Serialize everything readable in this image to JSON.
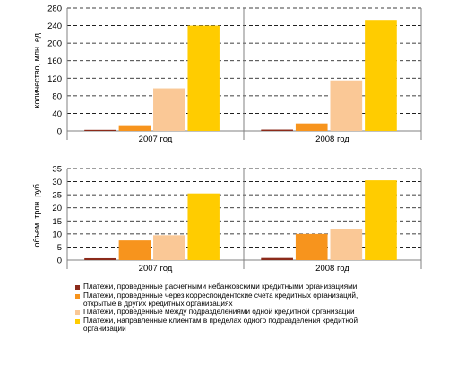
{
  "colors": {
    "series_colors": [
      "#8B2A1A",
      "#F7941D",
      "#FAC896",
      "#FFCC00"
    ],
    "grid": "#000000",
    "axis": "#808080"
  },
  "chart_data": [
    {
      "type": "bar",
      "ylabel": "количество, млн. ед.",
      "ylim": [
        0,
        280
      ],
      "yticks": [
        0,
        40,
        80,
        120,
        160,
        200,
        240,
        280
      ],
      "grid": "dashed",
      "panels": [
        {
          "label": "2007 год",
          "values": [
            2,
            13,
            97,
            240
          ]
        },
        {
          "label": "2008 год",
          "values": [
            3,
            17,
            115,
            253
          ]
        }
      ]
    },
    {
      "type": "bar",
      "ylabel": "объем, трлн. руб.",
      "ylim": [
        0,
        35
      ],
      "yticks": [
        0,
        5,
        10,
        15,
        20,
        25,
        30,
        35
      ],
      "grid": "dashed",
      "panels": [
        {
          "label": "2007 год",
          "values": [
            0.7,
            7.5,
            9.5,
            25.5
          ]
        },
        {
          "label": "2008 год",
          "values": [
            0.8,
            10,
            12,
            30.5
          ]
        }
      ]
    }
  ],
  "legend": [
    "Платежи, проведенные расчетными небанковскими кредитными организациями",
    "Платежи, проведенные через корреспондентские счета кредитных организаций, открытые в других кредитных организациях",
    "Платежи, проведенные между подразделениями одной кредитной организации",
    "Платежи, направленные клиентам в пределах одного подразделения кредитной организации"
  ]
}
